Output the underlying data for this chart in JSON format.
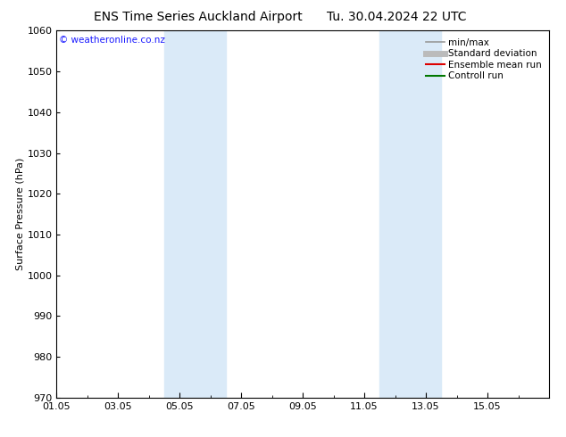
{
  "title": "ENS Time Series Auckland Airport",
  "date_label": "Tu. 30.04.2024 22 UTC",
  "ylabel": "Surface Pressure (hPa)",
  "ylim": [
    970,
    1060
  ],
  "yticks": [
    970,
    980,
    990,
    1000,
    1010,
    1020,
    1030,
    1040,
    1050,
    1060
  ],
  "xlim_start": 0,
  "xlim_end": 16,
  "xtick_labels": [
    "01.05",
    "03.05",
    "05.05",
    "07.05",
    "09.05",
    "11.05",
    "13.05",
    "15.05"
  ],
  "xtick_positions": [
    0,
    2,
    4,
    6,
    8,
    10,
    12,
    14
  ],
  "bg_color": "#ffffff",
  "plot_bg_color": "#ffffff",
  "shaded_bands": [
    {
      "x_start": 3.5,
      "x_end": 5.5,
      "color": "#daeaf8"
    },
    {
      "x_start": 10.5,
      "x_end": 12.5,
      "color": "#daeaf8"
    }
  ],
  "watermark_text": "© weatheronline.co.nz",
  "watermark_color": "#1a1aff",
  "legend_items": [
    {
      "label": "min/max",
      "color": "#999999",
      "lw": 1.2,
      "style": "-"
    },
    {
      "label": "Standard deviation",
      "color": "#bbbbbb",
      "lw": 5,
      "style": "-"
    },
    {
      "label": "Ensemble mean run",
      "color": "#dd0000",
      "lw": 1.5,
      "style": "-"
    },
    {
      "label": "Controll run",
      "color": "#007700",
      "lw": 1.5,
      "style": "-"
    }
  ],
  "title_fontsize": 10,
  "axis_label_fontsize": 8,
  "tick_fontsize": 8,
  "legend_fontsize": 7.5
}
